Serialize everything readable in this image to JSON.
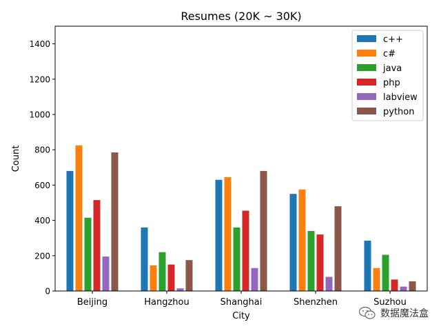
{
  "chart_data": {
    "type": "bar",
    "title": "Resumes (20K ~ 30K)",
    "xlabel": "City",
    "ylabel": "Count",
    "ylim": [
      0,
      1500
    ],
    "yticks": [
      0,
      200,
      400,
      600,
      800,
      1000,
      1200,
      1400
    ],
    "categories": [
      "Beijing",
      "Hangzhou",
      "Shanghai",
      "Shenzhen",
      "Suzhou"
    ],
    "series": [
      {
        "name": "c++",
        "color": "#1f77b4",
        "values": [
          680,
          360,
          630,
          550,
          285
        ]
      },
      {
        "name": "c#",
        "color": "#ff7f0e",
        "values": [
          825,
          145,
          645,
          575,
          130
        ]
      },
      {
        "name": "java",
        "color": "#2ca02c",
        "values": [
          415,
          220,
          360,
          340,
          205
        ]
      },
      {
        "name": "php",
        "color": "#d62728",
        "values": [
          515,
          150,
          455,
          320,
          65
        ]
      },
      {
        "name": "labview",
        "color": "#9467bd",
        "values": [
          195,
          15,
          130,
          80,
          25
        ]
      },
      {
        "name": "python",
        "color": "#8c564b",
        "values": [
          785,
          175,
          680,
          480,
          55
        ]
      }
    ],
    "legend_position": "top-right",
    "grid": false
  },
  "watermark": {
    "text": "数据魔法盒",
    "icon": "wechat-icon"
  }
}
